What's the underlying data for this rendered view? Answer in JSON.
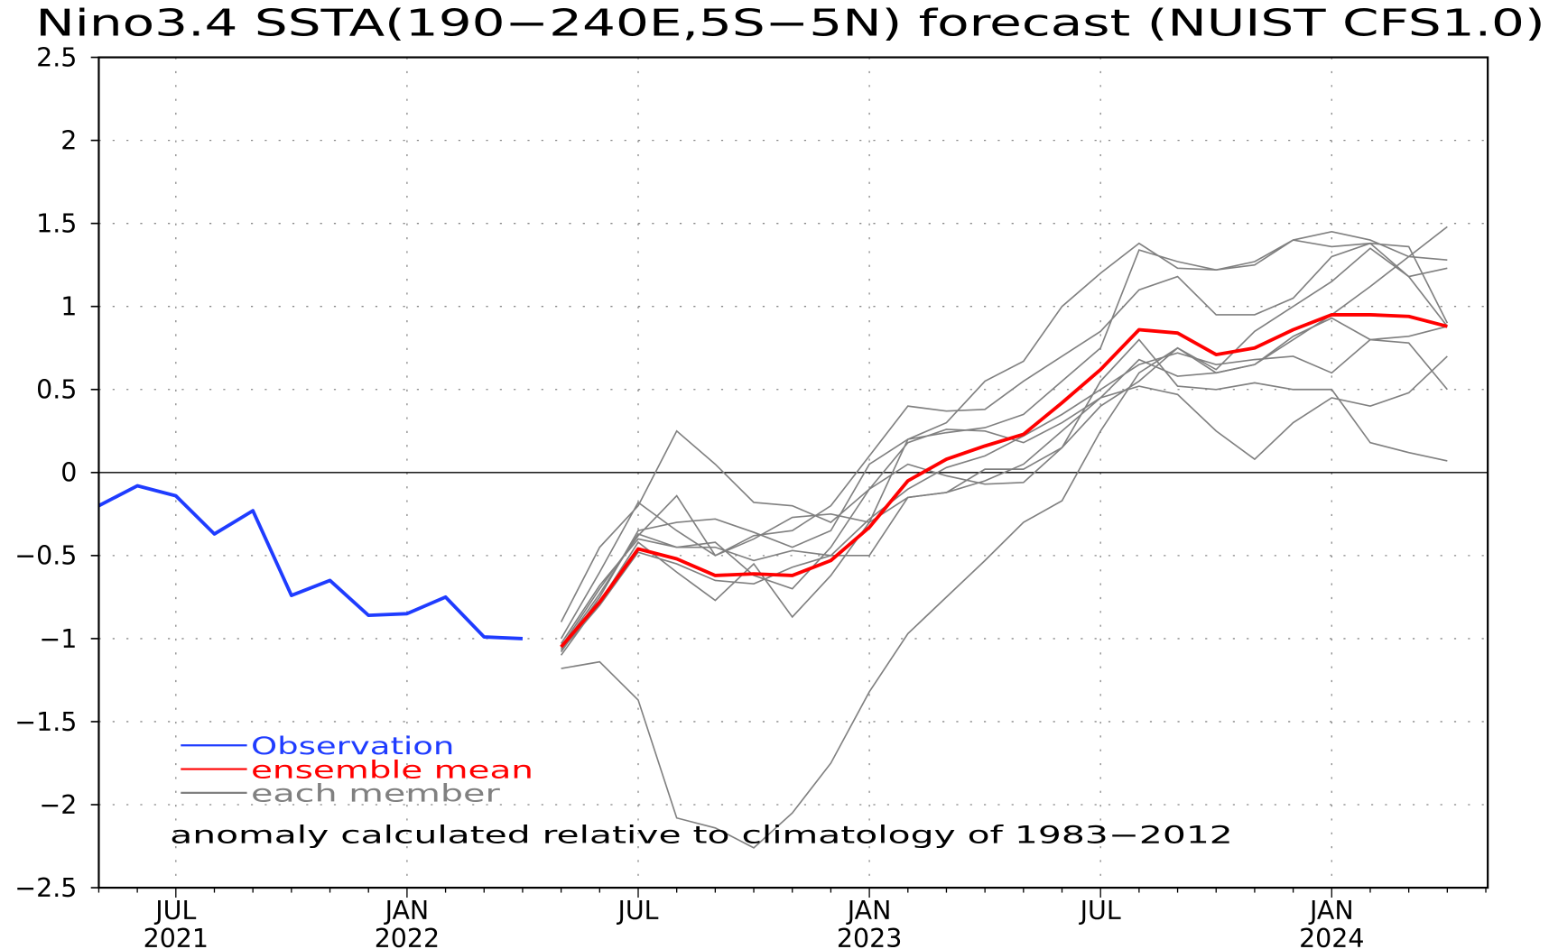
{
  "chart_data": {
    "type": "line",
    "title": "Nino3.4 SSTA(190−240E,5S−5N) forecast (NUIST CFS1.0)",
    "xlabel": "",
    "ylabel": "",
    "ylim": [
      -2.5,
      2.5
    ],
    "yticks": [
      2.5,
      2,
      1.5,
      1,
      0.5,
      0,
      -0.5,
      -1,
      -1.5,
      -2,
      -2.5
    ],
    "ytick_labels": [
      "2.5",
      "2",
      "1.5",
      "1",
      "0.5",
      "0",
      "−0.5",
      "−1",
      "−1.5",
      "−2",
      "−2.5"
    ],
    "x_start_month": "2021-05",
    "xlim_months": [
      0,
      36.05
    ],
    "xticks": [
      {
        "month": 2,
        "label": "JUL",
        "year": "2021"
      },
      {
        "month": 8,
        "label": "JAN",
        "year": "2022"
      },
      {
        "month": 14,
        "label": "JUL",
        "year": ""
      },
      {
        "month": 20,
        "label": "JAN",
        "year": "2023"
      },
      {
        "month": 26,
        "label": "JUL",
        "year": ""
      },
      {
        "month": 32,
        "label": "JAN",
        "year": "2024"
      }
    ],
    "grid": true,
    "observation": {
      "name": "Observation",
      "color": "#1f3cff",
      "start_month": 0,
      "values": [
        -0.2,
        -0.08,
        -0.14,
        -0.37,
        -0.23,
        -0.74,
        -0.65,
        -0.86,
        -0.85,
        -0.75,
        -0.99,
        -1.0
      ]
    },
    "ensemble_mean": {
      "name": "ensemble mean",
      "color": "#ff0000",
      "start_month": 12,
      "values": [
        -1.05,
        -0.78,
        -0.46,
        -0.52,
        -0.62,
        -0.61,
        -0.62,
        -0.53,
        -0.33,
        -0.05,
        0.08,
        0.16,
        0.23,
        0.42,
        0.62,
        0.86,
        0.84,
        0.71,
        0.75,
        0.86,
        0.95,
        0.95,
        0.94,
        0.88
      ]
    },
    "members": {
      "name": "each member",
      "color": "#808080",
      "start_month": 12,
      "series": [
        [
          -1.18,
          -1.14,
          -1.37,
          -2.08,
          -2.14,
          -2.26,
          -2.05,
          -1.75,
          -1.32,
          -0.97,
          -0.75,
          -0.53,
          -0.3,
          -0.17,
          0.25,
          0.6,
          0.75,
          0.62,
          0.85,
          1.0,
          1.15,
          1.35,
          1.18,
          0.88
        ],
        [
          -0.9,
          -0.45,
          -0.2,
          0.25,
          0.05,
          -0.18,
          -0.2,
          -0.3,
          -0.1,
          0.18,
          0.26,
          0.25,
          0.18,
          0.3,
          0.45,
          0.68,
          0.58,
          0.6,
          0.65,
          0.8,
          0.95,
          1.12,
          1.3,
          1.48
        ],
        [
          -1.0,
          -0.6,
          -0.18,
          -0.35,
          -0.5,
          -0.38,
          -0.35,
          -0.2,
          0.1,
          0.4,
          0.37,
          0.38,
          0.55,
          0.7,
          0.85,
          1.1,
          1.18,
          0.95,
          0.95,
          1.05,
          1.3,
          1.38,
          1.36,
          0.9
        ],
        [
          -1.05,
          -0.7,
          -0.38,
          -0.14,
          -0.5,
          -0.4,
          -0.27,
          -0.25,
          -0.3,
          -0.15,
          -0.12,
          0.02,
          0.02,
          0.15,
          0.4,
          0.55,
          0.75,
          0.6,
          0.65,
          0.82,
          0.93,
          0.8,
          0.78,
          0.5
        ],
        [
          -1.08,
          -0.75,
          -0.35,
          -0.3,
          -0.28,
          -0.36,
          -0.45,
          -0.35,
          0.05,
          0.2,
          0.3,
          0.55,
          0.67,
          1.0,
          1.2,
          1.38,
          1.23,
          1.22,
          1.27,
          1.4,
          1.45,
          1.4,
          1.3,
          1.28
        ],
        [
          -1.1,
          -0.78,
          -0.42,
          -0.6,
          -0.77,
          -0.55,
          -0.87,
          -0.62,
          -0.3,
          0.2,
          0.24,
          0.27,
          0.35,
          0.55,
          0.75,
          1.34,
          1.27,
          1.22,
          1.25,
          1.4,
          1.36,
          1.38,
          1.18,
          1.23
        ],
        [
          -1.06,
          -0.73,
          -0.37,
          -0.45,
          -0.42,
          -0.62,
          -0.7,
          -0.45,
          -0.1,
          0.05,
          -0.02,
          -0.07,
          -0.06,
          0.15,
          0.55,
          0.8,
          0.52,
          0.5,
          0.54,
          0.5,
          0.5,
          0.18,
          0.12,
          0.07
        ],
        [
          -1.07,
          -0.8,
          -0.48,
          -0.55,
          -0.65,
          -0.67,
          -0.57,
          -0.5,
          -0.5,
          -0.15,
          -0.12,
          -0.05,
          0.05,
          0.25,
          0.45,
          0.52,
          0.47,
          0.25,
          0.08,
          0.3,
          0.45,
          0.4,
          0.48,
          0.7
        ],
        [
          -1.03,
          -0.68,
          -0.4,
          -0.45,
          -0.45,
          -0.53,
          -0.47,
          -0.5,
          -0.28,
          -0.1,
          0.03,
          0.1,
          0.22,
          0.35,
          0.5,
          0.65,
          0.72,
          0.65,
          0.68,
          0.7,
          0.6,
          0.8,
          0.82,
          0.88
        ]
      ]
    },
    "legend": {
      "placement": "bottom-left",
      "entries": [
        {
          "label": "Observation",
          "color": "#1f3cff"
        },
        {
          "label": "ensemble  mean",
          "color": "#ff0000"
        },
        {
          "label": "each  member",
          "color": "#808080"
        }
      ]
    },
    "annotation": "anomaly  calculated  relative  to  climatology  of  1983−2012"
  }
}
